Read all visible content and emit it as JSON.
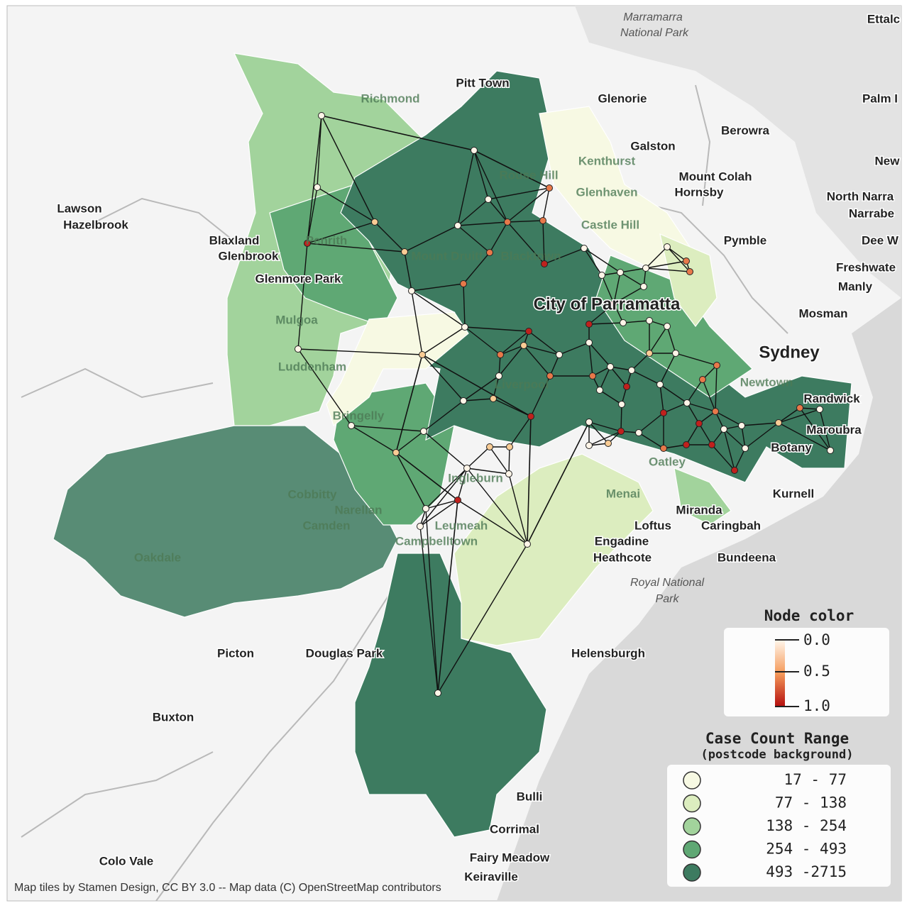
{
  "map": {
    "places": [
      "Marramarra",
      "National Park",
      "Ettalc",
      "Pitt Town",
      "Richmond",
      "Glenorie",
      "Palm I",
      "Berowra",
      "Galston",
      "Kenthurst",
      "Rouse Hill",
      "Glenhaven",
      "Mount Colah",
      "Hornsby",
      "New",
      "North Narra",
      "Narrabe",
      "Lawson",
      "Hazelbrook",
      "Blaxland",
      "Glenbrook",
      "Penrith",
      "Castle Hill",
      "Pymble",
      "Dee W",
      "Freshwate",
      "Manly",
      "Glenmore Park",
      "Mount Druitt",
      "Blacktown",
      "City of Parramatta",
      "Mosman",
      "Mulgoa",
      "Sydney",
      "Luddenham",
      "Newtown",
      "Liverpool",
      "Randwick",
      "Bringelly",
      "Maroubra",
      "Botany",
      "Oatley",
      "Ingleburn",
      "Cobbitty",
      "Narellan",
      "Camden",
      "Menai",
      "Kurnell",
      "Miranda",
      "Leumeah",
      "Loftus",
      "Caringbah",
      "Campbelltown",
      "Engadine",
      "Oakdale",
      "Heathcote",
      "Bundeena",
      "Royal National",
      "Park",
      "Picton",
      "Douglas Park",
      "Helensburgh",
      "Buxton",
      "Bulli",
      "Corrimal",
      "Fairy Meadow",
      "Colo Vale",
      "Keiraville"
    ],
    "attribution": "Map tiles by Stamen Design, CC BY 3.0 -- Map data (C) OpenStreetMap contributors"
  },
  "legend": {
    "node_color": {
      "title": "Node color",
      "ticks": [
        "0.0",
        "0.5",
        "1.0"
      ]
    },
    "case_count": {
      "title": "Case Count Range",
      "subtitle": "(postcode background)",
      "items": [
        {
          "label": "17 - 77",
          "color": "#f7f9e3"
        },
        {
          "label": "77 - 138",
          "color": "#dcedbf"
        },
        {
          "label": "138 - 254",
          "color": "#a2d39c"
        },
        {
          "label": "254 - 493",
          "color": "#5fa874"
        },
        {
          "label": "493 -2715",
          "color": "#3d7b60"
        }
      ]
    }
  }
}
